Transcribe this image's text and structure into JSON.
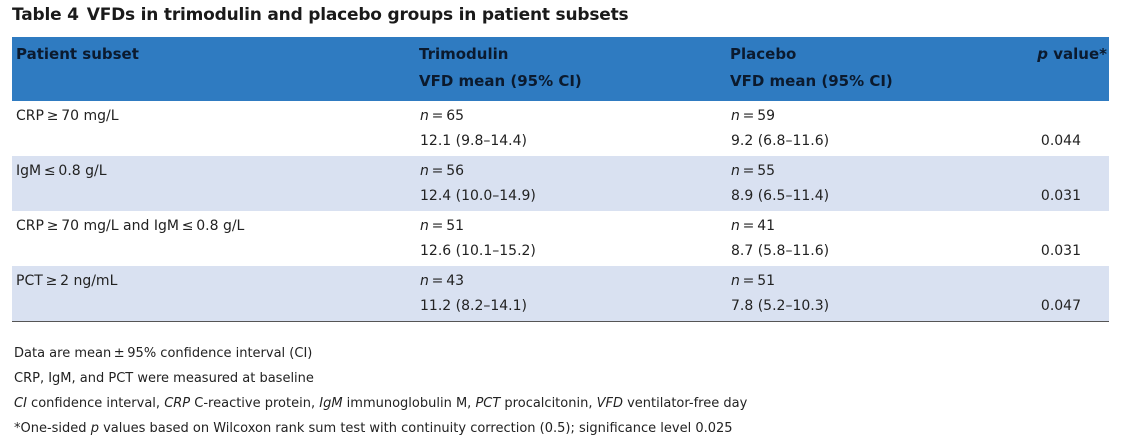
{
  "table": {
    "number": "Table 4",
    "caption": "VFDs in trimodulin and placebo groups in patient subsets",
    "header": {
      "subset": "Patient subset",
      "trimodulin": "Trimodulin",
      "trimodulin_sub": "VFD mean (95% CI)",
      "placebo": "Placebo",
      "placebo_sub": "VFD mean (95% CI)",
      "p_italic": "p",
      "p_rest": " value*"
    },
    "n_prefix": "n",
    "n_eq": " = ",
    "groups": [
      {
        "label": "CRP ≥ 70 mg/L",
        "trim_n": "65",
        "trim_val": "12.1 (9.8–14.4)",
        "plac_n": "59",
        "plac_val": "9.2 (6.8–11.6)",
        "p": "0.044"
      },
      {
        "label": "IgM ≤ 0.8 g/L",
        "trim_n": "56",
        "trim_val": "12.4 (10.0–14.9)",
        "plac_n": "55",
        "plac_val": "8.9 (6.5–11.4)",
        "p": "0.031"
      },
      {
        "label": "CRP ≥ 70 mg/L and IgM ≤ 0.8 g/L",
        "trim_n": "51",
        "trim_val": "12.6 (10.1–15.2)",
        "plac_n": "41",
        "plac_val": "8.7 (5.8–11.6)",
        "p": "0.031"
      },
      {
        "label": "PCT ≥ 2 ng/mL",
        "trim_n": "43",
        "trim_val": "11.2 (8.2–14.1)",
        "plac_n": "51",
        "plac_val": "7.8 (5.2–10.3)",
        "p": "0.047"
      }
    ]
  },
  "footnotes": {
    "line1": "Data are mean ± 95% confidence interval (CI)",
    "line2": "CRP, IgM, and PCT were measured at baseline",
    "abbrev": [
      {
        "term": "CI",
        "def": " confidence interval, "
      },
      {
        "term": "CRP",
        "def": " C-reactive protein, "
      },
      {
        "term": "IgM",
        "def": " immunoglobulin M, "
      },
      {
        "term": "PCT",
        "def": " procalcitonin, "
      },
      {
        "term": "VFD",
        "def": " ventilator-free day"
      }
    ],
    "line4_a": "*One-sided ",
    "line4_p": "p",
    "line4_b": " values based on Wilcoxon rank sum test with continuity correction (0.5); significance level 0.025"
  },
  "colors": {
    "header_bg": "#2f7bc1",
    "shade_bg": "#d9e1f1"
  }
}
